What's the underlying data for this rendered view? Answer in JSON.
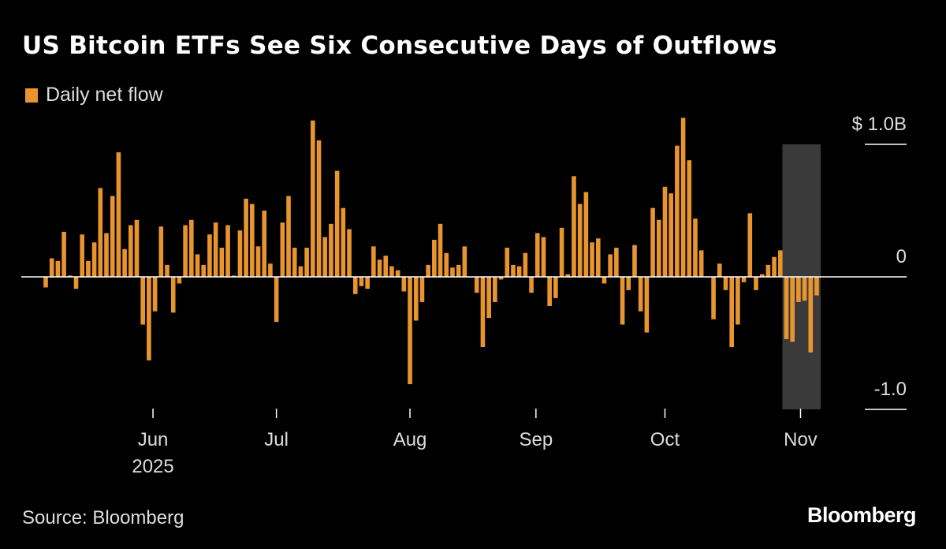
{
  "title": "US Bitcoin ETFs See Six Consecutive Days of Outflows",
  "source": "Source: Bloomberg",
  "logo": "Bloomberg",
  "colors": {
    "bar": "#e8952f",
    "highlight": "#3a3a3a",
    "background": "#000000",
    "axis": "#ffffff"
  },
  "chart_data": {
    "type": "bar",
    "title": "US Bitcoin ETFs See Six Consecutive Days of Outflows",
    "legend": [
      "Daily net flow"
    ],
    "legend_position": "top-left",
    "grid": false,
    "y_ticks": [
      {
        "value": 1.0,
        "label": "$ 1.0B"
      },
      {
        "value": 0,
        "label": "0"
      },
      {
        "value": -1.0,
        "label": "-1.0"
      }
    ],
    "ylim": [
      -1.0,
      1.0
    ],
    "y_unit": "USD billions",
    "x_ticks": [
      {
        "date": "2025-06-01",
        "label": "Jun",
        "sublabel": "2025"
      },
      {
        "date": "2025-07-01",
        "label": "Jul"
      },
      {
        "date": "2025-08-01",
        "label": "Aug"
      },
      {
        "date": "2025-09-01",
        "label": "Sep"
      },
      {
        "date": "2025-10-01",
        "label": "Oct"
      },
      {
        "date": "2025-11-01",
        "label": "Nov"
      }
    ],
    "highlight_range": [
      "2025-10-29",
      "2025-11-05"
    ],
    "series": [
      {
        "name": "Daily net flow",
        "x": [
          "2025-05-06",
          "2025-05-07",
          "2025-05-08",
          "2025-05-09",
          "2025-05-12",
          "2025-05-13",
          "2025-05-14",
          "2025-05-15",
          "2025-05-16",
          "2025-05-19",
          "2025-05-20",
          "2025-05-21",
          "2025-05-22",
          "2025-05-23",
          "2025-05-27",
          "2025-05-28",
          "2025-05-29",
          "2025-05-30",
          "2025-06-02",
          "2025-06-03",
          "2025-06-04",
          "2025-06-05",
          "2025-06-06",
          "2025-06-09",
          "2025-06-10",
          "2025-06-11",
          "2025-06-12",
          "2025-06-13",
          "2025-06-16",
          "2025-06-17",
          "2025-06-18",
          "2025-06-20",
          "2025-06-23",
          "2025-06-24",
          "2025-06-25",
          "2025-06-26",
          "2025-06-27",
          "2025-06-30",
          "2025-07-01",
          "2025-07-02",
          "2025-07-03",
          "2025-07-07",
          "2025-07-08",
          "2025-07-09",
          "2025-07-10",
          "2025-07-11",
          "2025-07-14",
          "2025-07-15",
          "2025-07-16",
          "2025-07-17",
          "2025-07-18",
          "2025-07-21",
          "2025-07-22",
          "2025-07-23",
          "2025-07-24",
          "2025-07-25",
          "2025-07-28",
          "2025-07-29",
          "2025-07-30",
          "2025-07-31",
          "2025-08-01",
          "2025-08-04",
          "2025-08-05",
          "2025-08-06",
          "2025-08-07",
          "2025-08-08",
          "2025-08-11",
          "2025-08-12",
          "2025-08-13",
          "2025-08-14",
          "2025-08-15",
          "2025-08-18",
          "2025-08-19",
          "2025-08-20",
          "2025-08-21",
          "2025-08-22",
          "2025-08-25",
          "2025-08-26",
          "2025-08-27",
          "2025-08-28",
          "2025-08-29",
          "2025-09-02",
          "2025-09-03",
          "2025-09-04",
          "2025-09-05",
          "2025-09-08",
          "2025-09-09",
          "2025-09-10",
          "2025-09-11",
          "2025-09-12",
          "2025-09-15",
          "2025-09-16",
          "2025-09-17",
          "2025-09-18",
          "2025-09-19",
          "2025-09-22",
          "2025-09-23",
          "2025-09-24",
          "2025-09-25",
          "2025-09-26",
          "2025-09-29",
          "2025-09-30",
          "2025-10-01",
          "2025-10-02",
          "2025-10-03",
          "2025-10-06",
          "2025-10-07",
          "2025-10-08",
          "2025-10-09",
          "2025-10-10",
          "2025-10-13",
          "2025-10-14",
          "2025-10-15",
          "2025-10-16",
          "2025-10-17",
          "2025-10-20",
          "2025-10-21",
          "2025-10-22",
          "2025-10-23",
          "2025-10-24",
          "2025-10-27",
          "2025-10-28",
          "2025-10-29",
          "2025-10-30",
          "2025-10-31",
          "2025-11-03",
          "2025-11-04",
          "2025-11-05"
        ],
        "values": [
          -0.08,
          0.14,
          0.12,
          0.34,
          0.01,
          -0.09,
          0.32,
          0.12,
          0.26,
          0.67,
          0.33,
          0.61,
          0.94,
          0.21,
          0.39,
          0.43,
          -0.36,
          -0.63,
          -0.26,
          0.38,
          0.09,
          -0.27,
          -0.05,
          0.39,
          0.43,
          0.17,
          0.09,
          0.32,
          0.41,
          0.22,
          0.39,
          0.01,
          0.35,
          0.59,
          0.55,
          0.23,
          0.5,
          0.1,
          -0.34,
          0.41,
          0.61,
          0.22,
          0.08,
          0.22,
          1.18,
          1.03,
          0.3,
          0.4,
          0.8,
          0.52,
          0.36,
          -0.13,
          -0.07,
          -0.09,
          0.23,
          0.13,
          0.16,
          0.08,
          0.05,
          -0.11,
          -0.81,
          -0.33,
          -0.19,
          0.09,
          0.28,
          0.4,
          0.18,
          0.07,
          0.09,
          0.23,
          0.0,
          -0.12,
          -0.53,
          -0.31,
          -0.19,
          -0.02,
          0.22,
          0.09,
          0.08,
          0.18,
          -0.12,
          0.33,
          0.3,
          -0.22,
          -0.16,
          0.37,
          0.02,
          0.76,
          0.55,
          0.64,
          0.26,
          0.29,
          -0.05,
          0.17,
          0.22,
          -0.36,
          -0.1,
          0.24,
          -0.26,
          -0.42,
          0.52,
          0.43,
          0.68,
          0.63,
          0.99,
          1.2,
          0.88,
          0.44,
          0.2,
          0.0,
          -0.32,
          0.1,
          -0.1,
          -0.53,
          -0.36,
          -0.04,
          0.48,
          -0.1,
          0.02,
          0.09,
          0.15,
          0.2,
          -0.47,
          -0.49,
          -0.19,
          -0.18,
          -0.57,
          -0.14
        ]
      }
    ]
  }
}
